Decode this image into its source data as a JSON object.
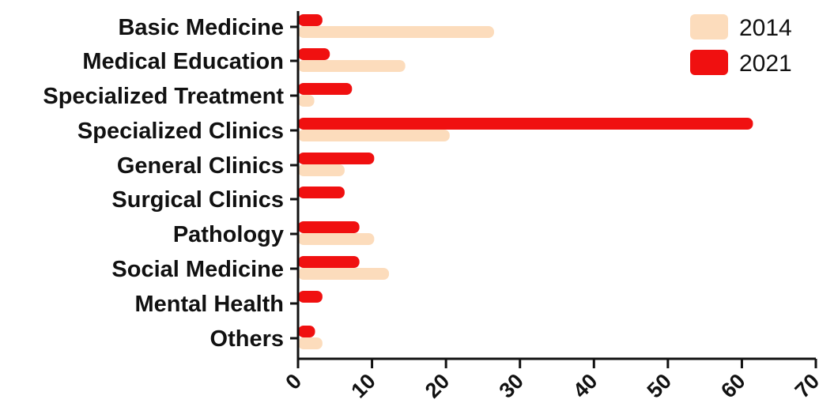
{
  "chart_data": {
    "type": "bar",
    "orientation": "horizontal",
    "categories": [
      "Basic Medicine",
      "Medical Education",
      "Specialized Treatment",
      "Specialized Clinics",
      "General Clinics",
      "Surgical Clinics",
      "Pathology",
      "Social Medicine",
      "Mental Health",
      "Others"
    ],
    "series": [
      {
        "name": "2014",
        "color": "#fcdcbc",
        "values": [
          26.5,
          14.5,
          2.2,
          20.5,
          6.3,
          0,
          10.3,
          12.3,
          0,
          3.3
        ]
      },
      {
        "name": "2021",
        "color": "#f01010",
        "values": [
          3.3,
          4.3,
          7.3,
          61.5,
          10.3,
          6.3,
          8.3,
          8.3,
          3.3,
          2.3
        ]
      }
    ],
    "xlim": [
      0,
      70
    ],
    "xticks": [
      "0",
      "10",
      "20",
      "30",
      "40",
      "50",
      "60",
      "70"
    ],
    "legend": "top-right",
    "grid": false,
    "title": "",
    "xlabel": "",
    "ylabel": ""
  }
}
